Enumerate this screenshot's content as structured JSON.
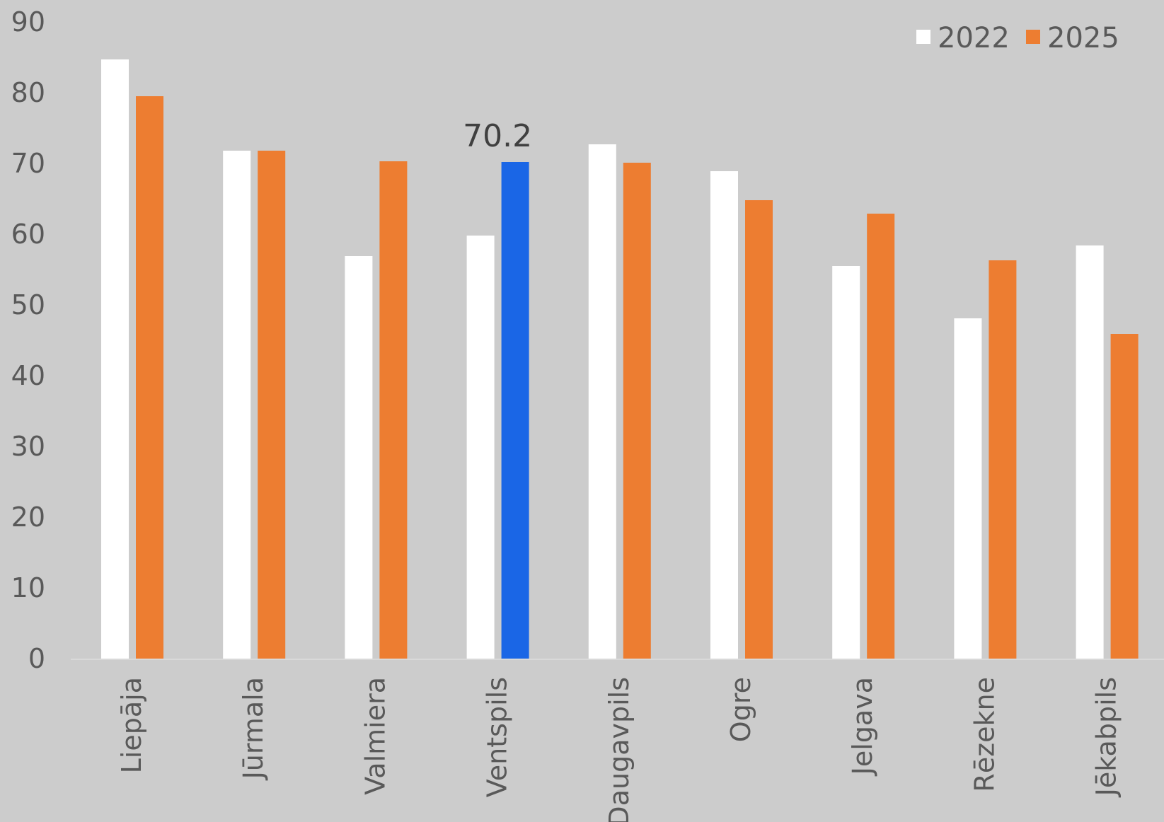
{
  "chart_data": {
    "type": "bar",
    "categories": [
      "Liepāja",
      "Jūrmala",
      "Valmiera",
      "Ventspils",
      "Daugavpils",
      "Ogre",
      "Jelgava",
      "Rēzekne",
      "Jēkabpils"
    ],
    "series": [
      {
        "name": "2022",
        "color": "#ffffff",
        "values": [
          84.7,
          71.8,
          56.9,
          59.8,
          72.7,
          68.9,
          55.5,
          48.1,
          58.4
        ]
      },
      {
        "name": "2025",
        "color": "#ed7d31",
        "values": [
          79.5,
          71.8,
          70.3,
          70.2,
          70.1,
          64.8,
          62.9,
          56.3,
          45.9
        ]
      }
    ],
    "highlight": {
      "series": 1,
      "index": 3,
      "color": "#1a66e6",
      "label": "70.2"
    },
    "yticks": [
      "0",
      "10",
      "20",
      "30",
      "40",
      "50",
      "60",
      "70",
      "80",
      "90"
    ],
    "ylim": [
      0,
      90
    ],
    "grid": false,
    "legend_position": "top-right"
  }
}
